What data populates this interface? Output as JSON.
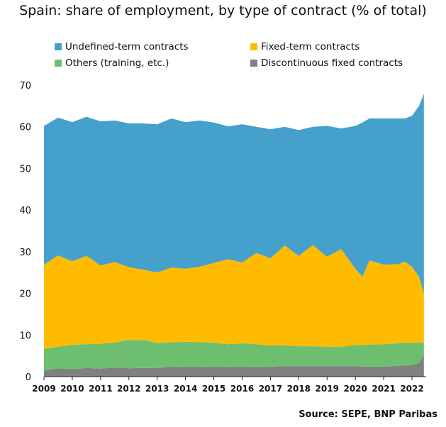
{
  "title": "Spain: share of employment, by type of contract (% of total)",
  "source": "Source: SEPE, BNP Paribas",
  "chart_data": {
    "type": "area",
    "stacked": true,
    "title": "Spain: share of employment, by type of contract (% of total)",
    "ylim": [
      0,
      70
    ],
    "yticks": [
      0,
      10,
      20,
      30,
      40,
      50,
      60,
      70
    ],
    "xlim": [
      2009,
      2022.5
    ],
    "xticks": [
      "2009",
      "2010",
      "2011",
      "2012",
      "2013",
      "2014",
      "2015",
      "2016",
      "2017",
      "2018",
      "2019",
      "2020",
      "2021",
      "2022"
    ],
    "grid": false,
    "legend_position": "top",
    "x": [
      2009.0,
      2009.5,
      2010.0,
      2010.5,
      2011.0,
      2011.5,
      2012.0,
      2012.5,
      2013.0,
      2013.5,
      2014.0,
      2014.5,
      2015.0,
      2015.5,
      2016.0,
      2016.5,
      2017.0,
      2017.5,
      2018.0,
      2018.5,
      2019.0,
      2019.5,
      2020.0,
      2020.25,
      2020.5,
      2021.0,
      2021.5,
      2021.75,
      2022.0,
      2022.25,
      2022.42
    ],
    "series": [
      {
        "name": "Discontinuous fixed contracts",
        "color": "#808080",
        "values": [
          1.4,
          2.0,
          1.8,
          2.1,
          1.9,
          2.2,
          2.0,
          2.1,
          2.1,
          2.4,
          2.3,
          2.3,
          2.4,
          2.3,
          2.4,
          2.3,
          2.4,
          2.5,
          2.5,
          2.5,
          2.5,
          2.5,
          2.5,
          2.4,
          2.4,
          2.4,
          2.6,
          2.7,
          2.8,
          3.3,
          5.3
        ]
      },
      {
        "name": "Others (training, etc.)",
        "color": "#6dbf6f",
        "values": [
          5.3,
          5.2,
          5.8,
          5.7,
          6.0,
          6.0,
          6.8,
          6.7,
          6.0,
          5.8,
          6.1,
          6.0,
          5.7,
          5.5,
          5.6,
          5.5,
          5.1,
          5.0,
          4.8,
          4.8,
          4.7,
          4.7,
          5.1,
          5.2,
          5.3,
          5.4,
          5.4,
          5.4,
          5.3,
          4.9,
          2.9
        ]
      },
      {
        "name": "Fixed-term contracts",
        "color": "#ffbb00",
        "values": [
          20.2,
          21.9,
          20.1,
          21.2,
          18.8,
          19.3,
          17.5,
          16.9,
          16.9,
          18.0,
          17.5,
          18.1,
          19.2,
          20.4,
          19.4,
          21.9,
          20.9,
          24.0,
          21.7,
          24.3,
          21.6,
          23.4,
          18.3,
          16.4,
          20.2,
          19.1,
          19.0,
          19.5,
          18.3,
          15.8,
          11.8
        ]
      },
      {
        "name": "Undefined-term contracts",
        "color": "#46a0cc",
        "values": [
          33.3,
          33.1,
          33.4,
          33.4,
          34.6,
          34.0,
          34.5,
          35.1,
          35.6,
          35.8,
          35.2,
          35.1,
          33.7,
          31.9,
          33.2,
          30.3,
          31.0,
          28.5,
          30.2,
          28.4,
          31.4,
          29.0,
          34.3,
          37.0,
          34.1,
          35.1,
          35.0,
          34.4,
          36.2,
          41.0,
          47.9
        ]
      }
    ]
  },
  "legend": [
    {
      "label": "Undefined-term contracts",
      "color": "#46a0cc"
    },
    {
      "label": "Fixed-term contracts",
      "color": "#ffbb00"
    },
    {
      "label": "Others (training, etc.)",
      "color": "#6dbf6f"
    },
    {
      "label": "Discontinuous fixed contracts",
      "color": "#808080"
    }
  ]
}
